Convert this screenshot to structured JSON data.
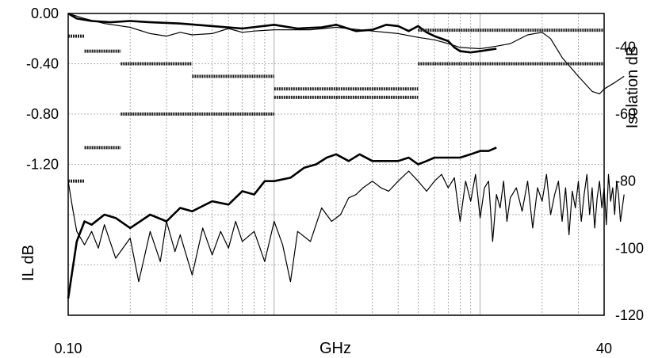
{
  "chart_data": {
    "type": "line",
    "title": "",
    "xlabel": "GHz",
    "ylabel_left": "IL dB",
    "ylabel_right": "Isolation dB",
    "x_scale": "log",
    "xlim": [
      0.1,
      40
    ],
    "x_tick_labels": [
      {
        "value": 0.1,
        "label": "0.10"
      },
      {
        "value": 40,
        "label": "40"
      }
    ],
    "ylim_left": [
      -2.4,
      0.0
    ],
    "y_left_ticks": [
      0.0,
      -0.4,
      -0.8,
      -1.2
    ],
    "y_left_tick_labels": [
      "0.00",
      "-0.40",
      "-0.80",
      "-1.20"
    ],
    "ylim_right": [
      -120,
      -30
    ],
    "y_right_ticks": [
      -40,
      -60,
      -80,
      -100,
      -120
    ],
    "y_right_tick_labels": [
      "-40",
      "-60",
      "-80",
      "-100",
      "-120"
    ],
    "grid": true,
    "series": [
      {
        "axis": "left",
        "style": "thick",
        "x": [
          0.1,
          0.11,
          0.13,
          0.16,
          0.2,
          0.25,
          0.35,
          0.5,
          0.7,
          1.0,
          1.3,
          1.7,
          2.0,
          2.5,
          3.0,
          3.5,
          4.0,
          4.5,
          5.0,
          5.5,
          6.0,
          7.0,
          7.5,
          8.0,
          9.0,
          10.0,
          12.0
        ],
        "y": [
          0.0,
          -0.04,
          -0.06,
          -0.07,
          -0.06,
          -0.07,
          -0.08,
          -0.1,
          -0.12,
          -0.09,
          -0.12,
          -0.11,
          -0.09,
          -0.14,
          -0.13,
          -0.09,
          -0.1,
          -0.14,
          -0.1,
          -0.15,
          -0.18,
          -0.22,
          -0.27,
          -0.3,
          -0.31,
          -0.3,
          -0.28
        ]
      },
      {
        "axis": "left",
        "style": "thin",
        "x": [
          0.1,
          0.12,
          0.15,
          0.2,
          0.25,
          0.3,
          0.35,
          0.4,
          0.5,
          0.6,
          0.7,
          0.8,
          1.0,
          1.5,
          2.0,
          3.0,
          4.0,
          5.0,
          6.0,
          7.0,
          8.0,
          10.0,
          12.0,
          14.0,
          17.0,
          20.0,
          22.0,
          25.0,
          30.0,
          35.0,
          38.0,
          40.0,
          45.0,
          50.0
        ],
        "y": [
          0.0,
          -0.04,
          -0.08,
          -0.11,
          -0.16,
          -0.18,
          -0.15,
          -0.17,
          -0.16,
          -0.12,
          -0.15,
          -0.14,
          -0.13,
          -0.13,
          -0.11,
          -0.14,
          -0.16,
          -0.19,
          -0.21,
          -0.24,
          -0.27,
          -0.28,
          -0.26,
          -0.24,
          -0.17,
          -0.15,
          -0.2,
          -0.35,
          -0.5,
          -0.62,
          -0.64,
          -0.6,
          -0.55,
          -0.5
        ]
      },
      {
        "axis": "right",
        "style": "thick",
        "x": [
          0.1,
          0.11,
          0.12,
          0.13,
          0.15,
          0.17,
          0.2,
          0.25,
          0.3,
          0.35,
          0.4,
          0.5,
          0.6,
          0.7,
          0.8,
          0.9,
          1.0,
          1.2,
          1.4,
          1.6,
          1.8,
          2.0,
          2.3,
          2.6,
          3.0,
          3.5,
          4.0,
          4.5,
          5.0,
          5.5,
          6.0,
          7.0,
          8.0,
          9.0,
          10.0,
          11.0,
          12.0
        ],
        "y": [
          -115,
          -98,
          -92,
          -93,
          -90,
          -91,
          -94,
          -90,
          -92,
          -88,
          -89,
          -86,
          -87,
          -83,
          -84,
          -80,
          -80,
          -79,
          -76,
          -75,
          -73,
          -72,
          -74,
          -72,
          -74,
          -74,
          -74,
          -73,
          -75,
          -74,
          -73,
          -73,
          -73,
          -72,
          -71,
          -71,
          -70
        ]
      },
      {
        "axis": "right",
        "style": "thin",
        "x": [
          0.1,
          0.105,
          0.11,
          0.12,
          0.13,
          0.14,
          0.15,
          0.17,
          0.2,
          0.22,
          0.25,
          0.28,
          0.3,
          0.33,
          0.35,
          0.4,
          0.45,
          0.5,
          0.55,
          0.6,
          0.65,
          0.7,
          0.8,
          0.9,
          1.0,
          1.1,
          1.2,
          1.3,
          1.5,
          1.7,
          1.9,
          2.1,
          2.3,
          2.5,
          2.7,
          3.0,
          3.3,
          3.6,
          4.0,
          4.5,
          5.0,
          5.5,
          6.0,
          6.5,
          7.0,
          7.5,
          8.0,
          8.5,
          9.0,
          9.5,
          10.0,
          10.5,
          11.0,
          11.5,
          12.0,
          12.5,
          13.0,
          13.5,
          14.0,
          15.0,
          16.0,
          17.0,
          18.0,
          19.0,
          20.0,
          21.0,
          22.0,
          23.0,
          24.0,
          25.0,
          26.0,
          27.0,
          28.0,
          29.0,
          30.0,
          31.0,
          32.0,
          33.0,
          34.0,
          35.0,
          36.0,
          37.0,
          38.0,
          39.0,
          40.0,
          41.0,
          42.0,
          43.0,
          44.0,
          45.0,
          46.0,
          47.0,
          48.0,
          50.0
        ],
        "y": [
          -80,
          -88,
          -95,
          -99,
          -95,
          -100,
          -93,
          -103,
          -97,
          -110,
          -95,
          -104,
          -92,
          -101,
          -96,
          -108,
          -94,
          -102,
          -95,
          -100,
          -92,
          -98,
          -95,
          -104,
          -92,
          -99,
          -110,
          -95,
          -98,
          -88,
          -92,
          -90,
          -85,
          -84,
          -82,
          -80,
          -82,
          -83,
          -80,
          -77,
          -80,
          -83,
          -80,
          -78,
          -82,
          -79,
          -92,
          -80,
          -86,
          -78,
          -91,
          -82,
          -80,
          -98,
          -84,
          -88,
          -80,
          -92,
          -85,
          -82,
          -89,
          -80,
          -94,
          -82,
          -86,
          -78,
          -90,
          -84,
          -80,
          -92,
          -82,
          -96,
          -83,
          -88,
          -80,
          -92,
          -84,
          -78,
          -90,
          -82,
          -94,
          -85,
          -80,
          -88,
          -82,
          -93,
          -78,
          -86,
          -82,
          -90,
          -80,
          -84,
          -92,
          -84
        ]
      },
      {
        "axis": "left",
        "style": "spec",
        "segments": [
          {
            "x": [
              0.1,
              0.12
            ],
            "y": -0.18
          },
          {
            "x": [
              0.12,
              0.18
            ],
            "y": -0.3
          },
          {
            "x": [
              0.18,
              0.4
            ],
            "y": -0.4
          },
          {
            "x": [
              0.4,
              1.0
            ],
            "y": -0.5
          },
          {
            "x": [
              1.0,
              5.0
            ],
            "y": -0.6
          }
        ]
      },
      {
        "axis": "right",
        "style": "spec",
        "segments": [
          {
            "x": [
              0.1,
              0.12
            ],
            "y": -80
          },
          {
            "x": [
              0.12,
              0.18
            ],
            "y": -70
          },
          {
            "x": [
              0.18,
              1.0
            ],
            "y": -60
          },
          {
            "x": [
              1.0,
              5.0
            ],
            "y": -55
          },
          {
            "x": [
              5.0,
              40.0
            ],
            "y": -45
          },
          {
            "x": [
              5.0,
              40.0
            ],
            "y": -35
          }
        ]
      }
    ]
  }
}
